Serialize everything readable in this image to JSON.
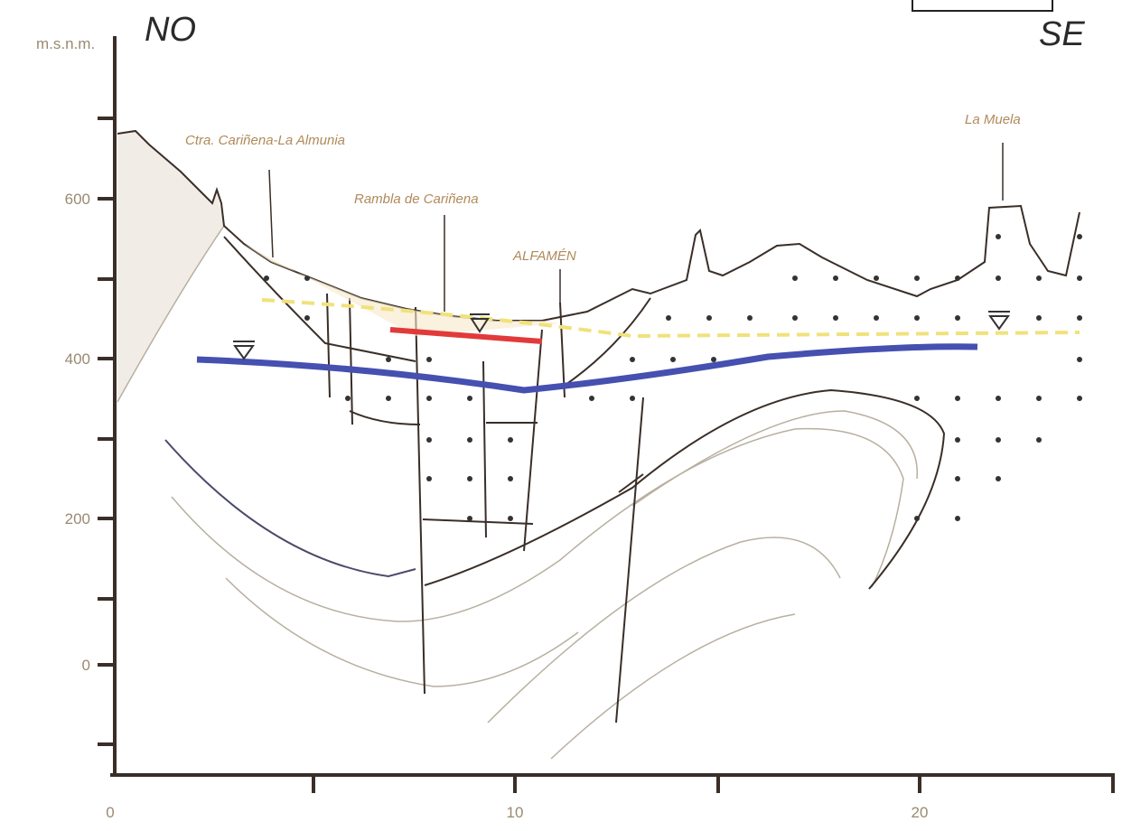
{
  "orientation": {
    "left": "NO",
    "right": "SE"
  },
  "axis": {
    "unit": "m.s.n.m.",
    "y_labels": [
      "600",
      "400",
      "200",
      "0"
    ],
    "x_labels": [
      "0",
      "10",
      "20"
    ]
  },
  "places": [
    "Ctra. Cariñena-La Almunia",
    "Rambla de Cariñena",
    "ALFAMÉN",
    "La Muela"
  ]
}
